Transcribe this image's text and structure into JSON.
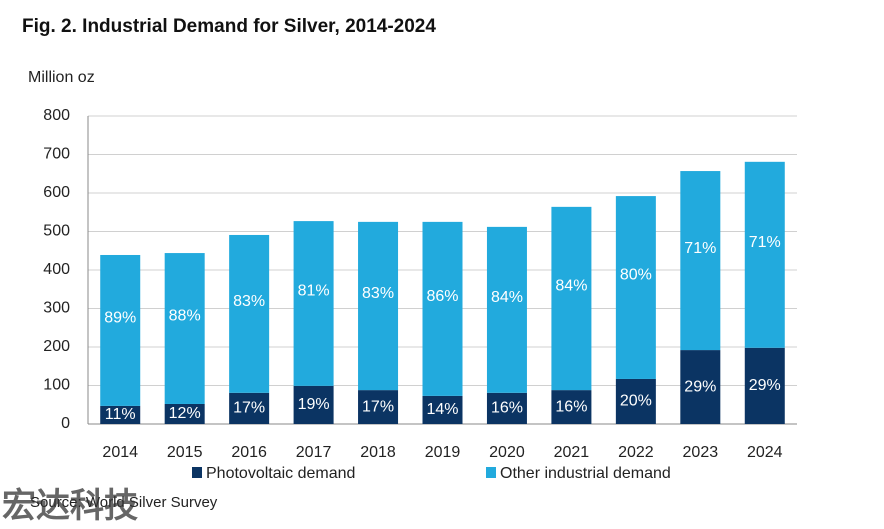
{
  "chart_data": {
    "type": "stacked_bar",
    "title": "Fig. 2. Industrial Demand for Silver, 2014-2024",
    "y_label": "Million oz",
    "categories": [
      "2014",
      "2015",
      "2016",
      "2017",
      "2018",
      "2019",
      "2020",
      "2021",
      "2022",
      "2023",
      "2024"
    ],
    "series": [
      {
        "name": "Photovoltaic demand",
        "color": "#0b3463",
        "values": [
          47,
          52,
          81,
          99,
          88,
          73,
          81,
          88,
          117,
          192,
          198
        ],
        "share_labels": [
          "11%",
          "12%",
          "17%",
          "19%",
          "17%",
          "14%",
          "16%",
          "16%",
          "20%",
          "29%",
          "29%"
        ]
      },
      {
        "name": "Other industrial demand",
        "color": "#22aadd",
        "values": [
          392,
          392,
          410,
          428,
          437,
          452,
          431,
          476,
          475,
          465,
          483
        ],
        "share_labels": [
          "89%",
          "88%",
          "83%",
          "81%",
          "83%",
          "86%",
          "84%",
          "84%",
          "80%",
          "71%",
          "71%"
        ]
      }
    ],
    "ylim": [
      0,
      800
    ],
    "yticks": [
      0,
      100,
      200,
      300,
      400,
      500,
      600,
      700,
      800
    ],
    "grid": true,
    "legend": "bottom",
    "source": "Source: World Silver Survey",
    "watermark": "宏达科技"
  }
}
